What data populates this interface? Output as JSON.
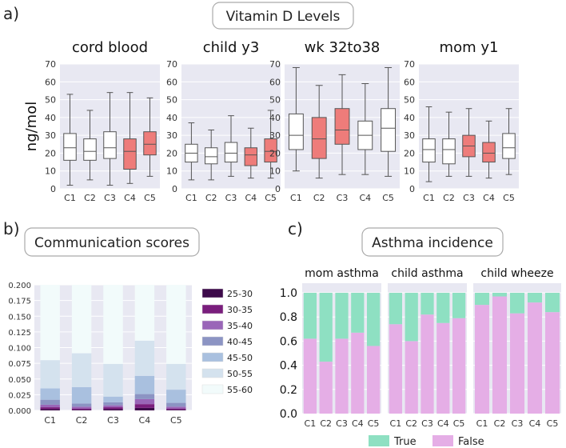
{
  "panel_labels": [
    "a)",
    "b)",
    "c)"
  ],
  "section_titles": {
    "a": "Vitamin D Levels",
    "b": "Communication scores",
    "c": "Asthma incidence"
  },
  "colors": {
    "panel_bg": "#e8e8f2",
    "grid": "#ffffff",
    "box_white": "#ffffff",
    "box_red": "#ee7c7a",
    "true": "#8ee0c2",
    "false": "#e5aee6"
  },
  "chart_data": [
    {
      "type": "box",
      "title": "cord blood",
      "ylabel": "ng/mol",
      "categories": [
        "C1",
        "C2",
        "C3",
        "C4",
        "C5"
      ],
      "ylim": [
        0,
        70
      ],
      "yticks": [
        0,
        10,
        20,
        30,
        40,
        50,
        60,
        70
      ],
      "boxes": [
        {
          "min": 2,
          "q1": 16,
          "median": 23,
          "q3": 31,
          "max": 53,
          "highlight": false
        },
        {
          "min": 5,
          "q1": 16,
          "median": 21,
          "q3": 28,
          "max": 44,
          "highlight": false
        },
        {
          "min": 2,
          "q1": 17,
          "median": 23,
          "q3": 32,
          "max": 54,
          "highlight": false
        },
        {
          "min": 3,
          "q1": 11,
          "median": 21,
          "q3": 28,
          "max": 54,
          "highlight": true
        },
        {
          "min": 7,
          "q1": 19,
          "median": 25,
          "q3": 32,
          "max": 51,
          "highlight": true
        }
      ]
    },
    {
      "type": "box",
      "title": "child y3",
      "categories": [
        "C1",
        "C2",
        "C3",
        "C4",
        "C5"
      ],
      "ylim": [
        0,
        70
      ],
      "yticks": [
        0,
        10,
        20,
        30,
        40,
        50,
        60,
        70
      ],
      "boxes": [
        {
          "min": 5,
          "q1": 15,
          "median": 20,
          "q3": 25,
          "max": 37,
          "highlight": false
        },
        {
          "min": 5,
          "q1": 14,
          "median": 18,
          "q3": 23,
          "max": 33,
          "highlight": false
        },
        {
          "min": 7,
          "q1": 15,
          "median": 20,
          "q3": 26,
          "max": 41,
          "highlight": false
        },
        {
          "min": 6,
          "q1": 13,
          "median": 19,
          "q3": 23,
          "max": 34,
          "highlight": true
        },
        {
          "min": 6,
          "q1": 15,
          "median": 21,
          "q3": 28,
          "max": 44,
          "highlight": true
        }
      ]
    },
    {
      "type": "box",
      "title": "wk 32to38",
      "categories": [
        "C1",
        "C2",
        "C3",
        "C4",
        "C5"
      ],
      "ylim": [
        0,
        70
      ],
      "yticks": [
        0,
        10,
        20,
        30,
        40,
        50,
        60,
        70
      ],
      "boxes": [
        {
          "min": 10,
          "q1": 22,
          "median": 30,
          "q3": 42,
          "max": 68,
          "highlight": false
        },
        {
          "min": 6,
          "q1": 17,
          "median": 28,
          "q3": 40,
          "max": 58,
          "highlight": true
        },
        {
          "min": 8,
          "q1": 25,
          "median": 33,
          "q3": 45,
          "max": 64,
          "highlight": true
        },
        {
          "min": 8,
          "q1": 22,
          "median": 30,
          "q3": 38,
          "max": 59,
          "highlight": false
        },
        {
          "min": 7,
          "q1": 21,
          "median": 34,
          "q3": 45,
          "max": 68,
          "highlight": false
        }
      ]
    },
    {
      "type": "box",
      "title": "mom y1",
      "categories": [
        "C1",
        "C2",
        "C3",
        "C4",
        "C5"
      ],
      "ylim": [
        0,
        70
      ],
      "yticks": [
        0,
        10,
        20,
        30,
        40,
        50,
        60,
        70
      ],
      "boxes": [
        {
          "min": 4,
          "q1": 15,
          "median": 22,
          "q3": 28,
          "max": 46,
          "highlight": false
        },
        {
          "min": 7,
          "q1": 14,
          "median": 22,
          "q3": 28,
          "max": 43,
          "highlight": false
        },
        {
          "min": 7,
          "q1": 18,
          "median": 24,
          "q3": 30,
          "max": 45,
          "highlight": true
        },
        {
          "min": 6,
          "q1": 15,
          "median": 20,
          "q3": 26,
          "max": 38,
          "highlight": true
        },
        {
          "min": 8,
          "q1": 17,
          "median": 23,
          "q3": 31,
          "max": 45,
          "highlight": false
        }
      ]
    },
    {
      "type": "bar",
      "stacked": true,
      "categories": [
        "C1",
        "C2",
        "C3",
        "C4",
        "C5"
      ],
      "ylim": [
        0,
        0.2
      ],
      "yticks": [
        "0.000",
        "0.025",
        "0.050",
        "0.075",
        "0.100",
        "0.125",
        "0.150",
        "0.175",
        "0.200"
      ],
      "legend_position": "right",
      "series": [
        {
          "name": "25-30",
          "color": "#3d0a4a",
          "values": [
            0.002,
            0.001,
            0.002,
            0.004,
            0.001
          ]
        },
        {
          "name": "30-35",
          "color": "#7a1e7d",
          "values": [
            0.003,
            0.002,
            0.003,
            0.006,
            0.002
          ]
        },
        {
          "name": "35-40",
          "color": "#9a66b8",
          "values": [
            0.004,
            0.003,
            0.003,
            0.008,
            0.003
          ]
        },
        {
          "name": "40-45",
          "color": "#8c94c3",
          "values": [
            0.008,
            0.005,
            0.005,
            0.008,
            0.006
          ]
        },
        {
          "name": "45-50",
          "color": "#a9c0df",
          "values": [
            0.018,
            0.026,
            0.009,
            0.029,
            0.021
          ]
        },
        {
          "name": "50-55",
          "color": "#d4e2ee",
          "values": [
            0.045,
            0.054,
            0.052,
            0.056,
            0.041
          ]
        },
        {
          "name": "55-60",
          "color": "#f2fbfb",
          "values": [
            0.12,
            0.109,
            0.126,
            0.089,
            0.126
          ]
        }
      ]
    },
    {
      "type": "bar",
      "stacked": true,
      "title": "mom asthma",
      "categories": [
        "C1",
        "C2",
        "C3",
        "C4",
        "C5"
      ],
      "ylim": [
        0,
        1
      ],
      "yticks": [
        "0.0",
        "0.2",
        "0.4",
        "0.6",
        "0.8",
        "1.0"
      ],
      "series": [
        {
          "name": "False",
          "values": [
            0.62,
            0.43,
            0.62,
            0.67,
            0.56
          ]
        },
        {
          "name": "True",
          "values": [
            0.38,
            0.57,
            0.38,
            0.33,
            0.44
          ]
        }
      ]
    },
    {
      "type": "bar",
      "stacked": true,
      "title": "child asthma",
      "categories": [
        "C1",
        "C2",
        "C3",
        "C4",
        "C5"
      ],
      "ylim": [
        0,
        1
      ],
      "series": [
        {
          "name": "False",
          "values": [
            0.74,
            0.6,
            0.82,
            0.75,
            0.79
          ]
        },
        {
          "name": "True",
          "values": [
            0.26,
            0.4,
            0.18,
            0.25,
            0.21
          ]
        }
      ]
    },
    {
      "type": "bar",
      "stacked": true,
      "title": "child wheeze",
      "categories": [
        "C1",
        "C2",
        "C3",
        "C4",
        "C5"
      ],
      "ylim": [
        0,
        1
      ],
      "series": [
        {
          "name": "False",
          "values": [
            0.9,
            0.97,
            0.83,
            0.92,
            0.84
          ]
        },
        {
          "name": "True",
          "values": [
            0.1,
            0.03,
            0.17,
            0.08,
            0.16
          ]
        }
      ]
    }
  ],
  "asthma_legend": [
    "True",
    "False"
  ]
}
